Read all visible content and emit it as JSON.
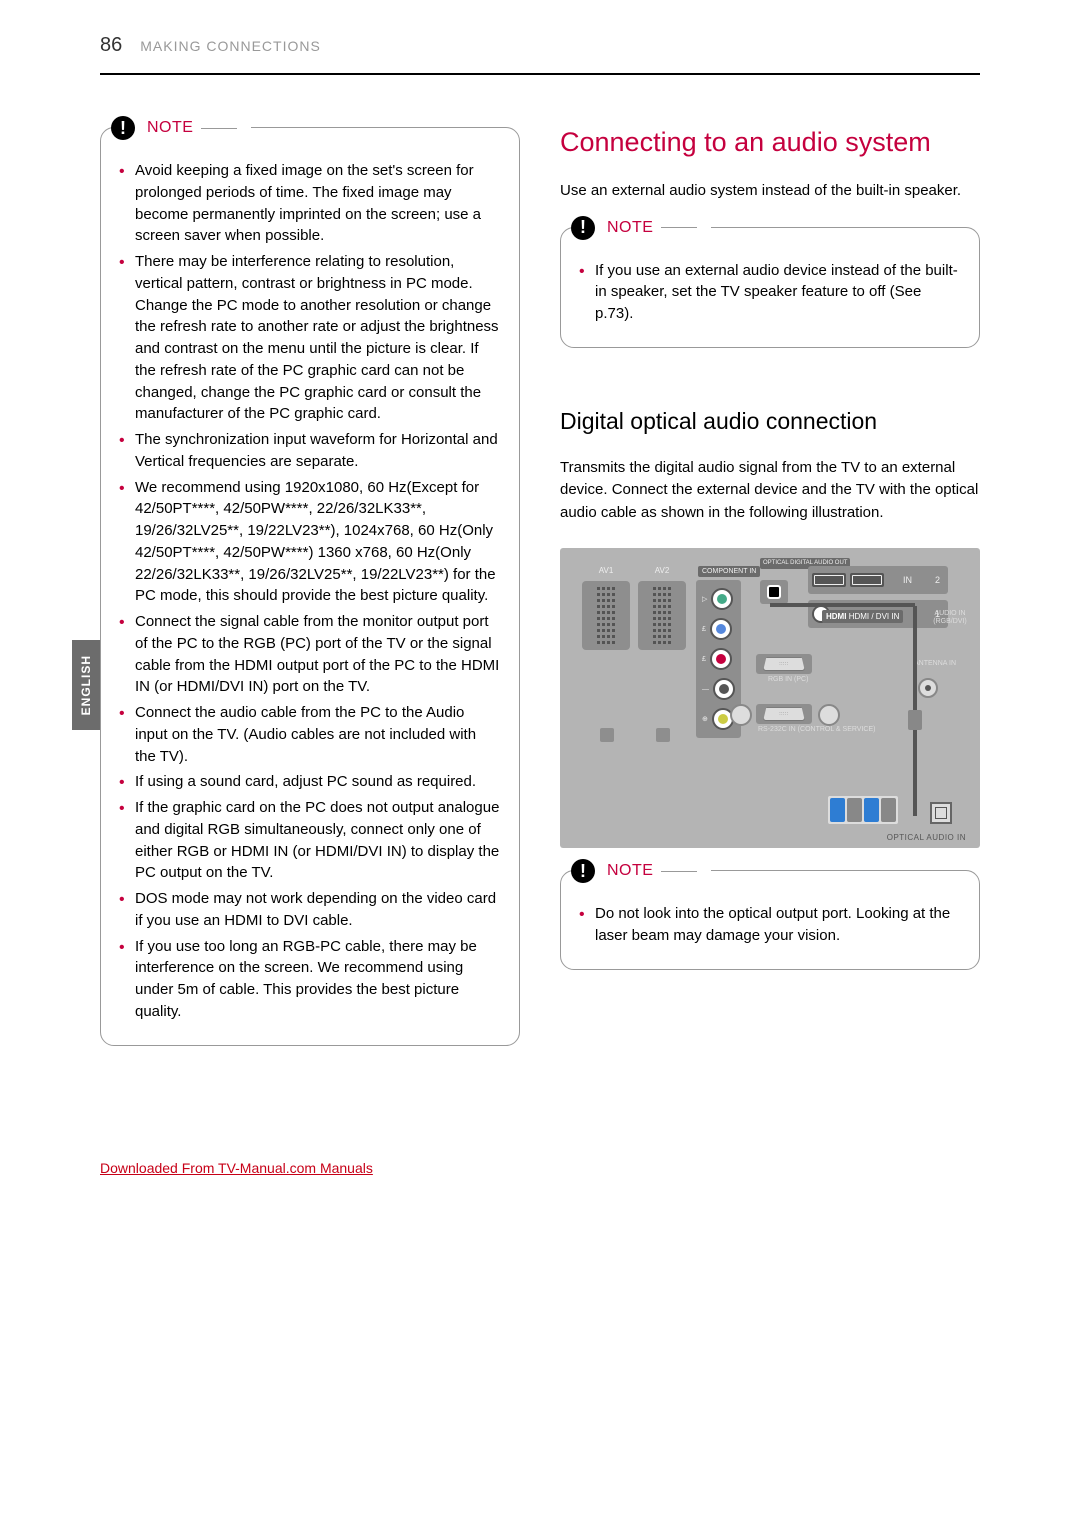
{
  "page": {
    "number": "86",
    "section": "MAKING CONNECTIONS"
  },
  "side_tab": "ENGLISH",
  "note_label": "NOTE",
  "left_note_items": [
    "Avoid keeping a fixed image on the set's screen for prolonged periods of time. The fixed image may become permanently imprinted on the screen; use a screen saver when possible.",
    "There may be interference relating to resolution, vertical pattern, contrast or brightness in PC mode. Change the PC mode to another resolution or change the refresh rate to another rate or adjust the brightness and contrast on the menu until the picture is clear. If the refresh rate of the PC graphic card can not be changed, change the PC graphic card or consult the manufacturer of the PC graphic card.",
    "The synchronization input waveform for Horizontal and Vertical frequencies are separate.",
    "We recommend using 1920x1080, 60 Hz(Except for 42/50PT****, 42/50PW****, 22/26/32LK33**, 19/26/32LV25**, 19/22LV23**), 1024x768, 60 Hz(Only 42/50PT****, 42/50PW****) 1360 x768, 60 Hz(Only 22/26/32LK33**, 19/26/32LV25**, 19/22LV23**) for the PC mode, this should provide the best picture quality.",
    "Connect the signal cable from the monitor output port of the PC to the RGB (PC) port of the TV or the signal cable from the HDMI output port of the PC to the HDMI IN (or HDMI/DVI IN) port on the TV.",
    "Connect the audio cable from the PC to the Audio input on the TV. (Audio cables are not included with the TV).",
    "If using a sound card, adjust PC sound as required.",
    "If the graphic card on the PC does not output analogue and digital RGB simultaneously, connect only one of either RGB or HDMI IN (or HDMI/DVI IN) to display the PC output on the TV.",
    "DOS mode may not work depending on the video card if you use an HDMI to DVI cable.",
    "If you use too long an RGB-PC cable, there may be interference on the screen. We recommend using under 5m of cable. This provides the best picture quality."
  ],
  "right": {
    "h1": "Connecting to an audio system",
    "intro": "Use an external audio system instead of the built-in speaker.",
    "note1_items": [
      "If you use an external audio device instead of the built-in speaker, set the TV speaker feature to off (See p.73)."
    ],
    "h2": "Digital optical audio connection",
    "body2": "Transmits the digital audio signal from the TV to an external device. Connect the external device and the TV with the optical audio cable as shown in the following illustration.",
    "note2_items": [
      "Do not look into the optical output port. Looking at the laser beam may damage your vision."
    ]
  },
  "diagram": {
    "av1": "AV1",
    "av2": "AV2",
    "component_in": "COMPONENT IN",
    "optical_out": "OPTICAL\nDIGITAL\nAUDIO OUT",
    "hdmi_dvi_in": "HDMI / DVI IN",
    "audio_in": "AUDIO IN\n(RGB/DVI)",
    "rgb_in": "RGB IN (PC)",
    "rs232c": "RS-232C IN\n(CONTROL & SERVICE)",
    "antenna": "ANTENNA\nIN",
    "optical_audio_in": "OPTICAL AUDIO IN",
    "hdmi2": "2",
    "hdmi1": "1",
    "hdmi_in": "IN",
    "hdmi_brand": "HDMI"
  },
  "footer": {
    "text": "Downloaded From TV-Manual.com Manuals",
    "href": "#"
  },
  "colors": {
    "accent": "#c5003e",
    "diagram_bg": "#b4b4b4",
    "side_tab_bg": "#6c6c6c"
  }
}
